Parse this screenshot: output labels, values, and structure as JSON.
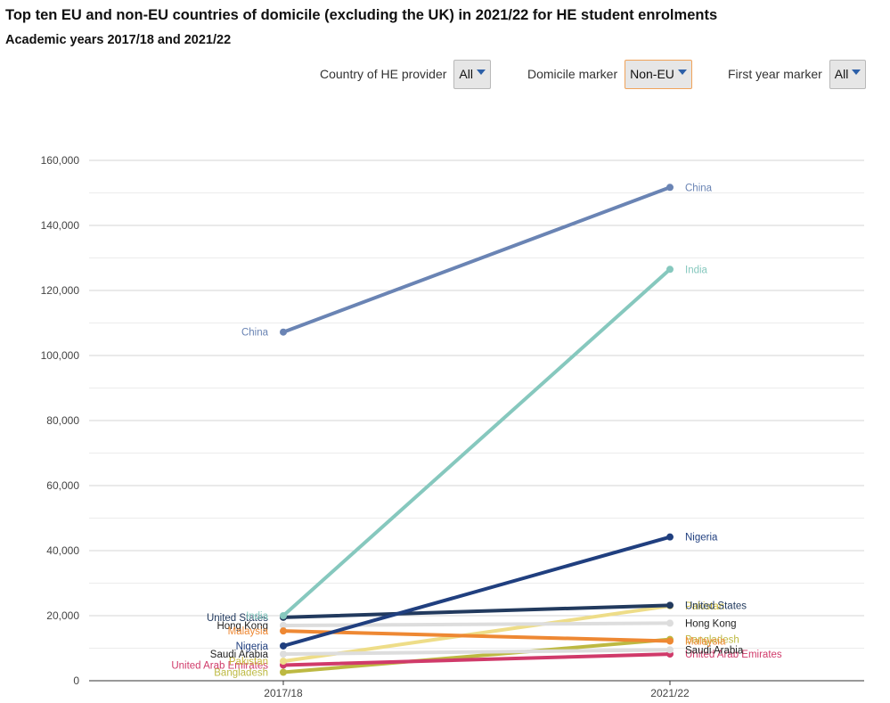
{
  "header": {
    "title": "Top ten EU and non-EU countries of domicile (excluding the UK) in 2021/22 for HE student enrolments",
    "subtitle": "Academic years 2017/18 and 2021/22"
  },
  "filters": [
    {
      "label": "Country of HE provider",
      "value": "All",
      "active": false
    },
    {
      "label": "Domicile marker",
      "value": "Non-EU",
      "active": true
    },
    {
      "label": "First year marker",
      "value": "All",
      "active": false
    }
  ],
  "chart_data": {
    "type": "line",
    "x": [
      "2017/18",
      "2021/22"
    ],
    "ylim": [
      0,
      160000
    ],
    "yticks": [
      0,
      20000,
      40000,
      60000,
      80000,
      100000,
      120000,
      140000,
      160000
    ],
    "ytick_labels": [
      "0",
      "20,000",
      "40,000",
      "60,000",
      "80,000",
      "100,000",
      "120,000",
      "140,000",
      "160,000"
    ],
    "grid": true,
    "series": [
      {
        "name": "Bangladesh",
        "values": [
          2600,
          12700
        ],
        "color": "#bdb942"
      },
      {
        "name": "United Arab Emirates",
        "values": [
          4800,
          8200
        ],
        "color": "#d03a6a"
      },
      {
        "name": "Pakistan",
        "values": [
          6000,
          23000
        ],
        "color": "#eedd88"
      },
      {
        "name": "Saudi Arabia",
        "values": [
          8200,
          9500
        ],
        "color": "#dddddd"
      },
      {
        "name": "Hong Kong",
        "values": [
          17000,
          17700
        ],
        "color": "#dddddd"
      },
      {
        "name": "Malaysia",
        "values": [
          15300,
          12200
        ],
        "color": "#ee8833"
      },
      {
        "name": "United States",
        "values": [
          19500,
          23200
        ],
        "color": "#223a5e"
      },
      {
        "name": "Nigeria",
        "values": [
          10700,
          44200
        ],
        "color": "#203f7f"
      },
      {
        "name": "India",
        "values": [
          20000,
          126500
        ],
        "color": "#86c8be"
      },
      {
        "name": "China",
        "values": [
          107200,
          151700
        ],
        "color": "#6a84b4"
      }
    ]
  }
}
